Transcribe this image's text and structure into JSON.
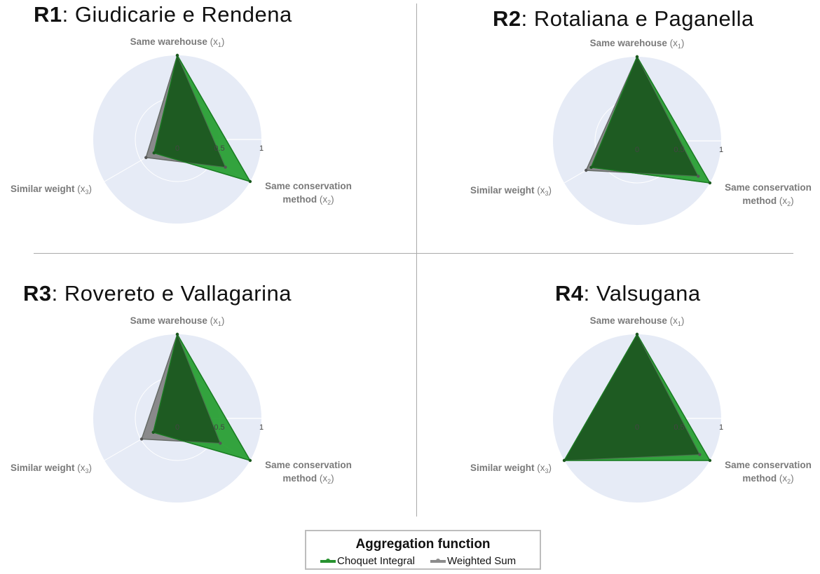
{
  "chart_data": [
    {
      "type": "radar",
      "title_bold": "R1",
      "title_rest": "Giudicarie e Rendena",
      "axes": [
        "Same warehouse (x1)",
        "Same conservation method (x2)",
        "Similar weight (x3)"
      ],
      "radial_ticks": [
        "0",
        "0.5",
        "1"
      ],
      "rlim": [
        0,
        1
      ],
      "series": [
        {
          "name": "Choquet Integral",
          "values": [
            1.0,
            1.0,
            0.32
          ]
        },
        {
          "name": "Weighted Sum",
          "values": [
            1.0,
            0.66,
            0.43
          ]
        }
      ]
    },
    {
      "type": "radar",
      "title_bold": "R2",
      "title_rest": "Rotaliana e Paganella",
      "axes": [
        "Same warehouse (x1)",
        "Same conservation method (x2)",
        "Similar weight (x3)"
      ],
      "radial_ticks": [
        "0",
        "0.5",
        "1"
      ],
      "rlim": [
        0,
        1
      ],
      "series": [
        {
          "name": "Choquet Integral",
          "values": [
            1.0,
            1.0,
            0.63
          ]
        },
        {
          "name": "Weighted Sum",
          "values": [
            1.0,
            0.84,
            0.7
          ]
        }
      ]
    },
    {
      "type": "radar",
      "title_bold": "R3",
      "title_rest": "Rovereto e Vallagarina",
      "axes": [
        "Same warehouse (x1)",
        "Same conservation method (x2)",
        "Similar weight (x3)"
      ],
      "radial_ticks": [
        "0",
        "0.5",
        "1"
      ],
      "rlim": [
        0,
        1
      ],
      "series": [
        {
          "name": "Choquet Integral",
          "values": [
            1.0,
            1.0,
            0.33
          ]
        },
        {
          "name": "Weighted Sum",
          "values": [
            1.0,
            0.59,
            0.49
          ]
        }
      ]
    },
    {
      "type": "radar",
      "title_bold": "R4",
      "title_rest": "Valsugana",
      "axes": [
        "Same warehouse (x1)",
        "Same conservation method (x2)",
        "Similar weight (x3)"
      ],
      "radial_ticks": [
        "0",
        "0.5",
        "1"
      ],
      "rlim": [
        0,
        1
      ],
      "series": [
        {
          "name": "Choquet Integral",
          "values": [
            1.0,
            1.0,
            1.0
          ]
        },
        {
          "name": "Weighted Sum",
          "values": [
            1.0,
            0.86,
            1.0
          ]
        }
      ]
    }
  ],
  "legend": {
    "title": "Aggregation function",
    "items": [
      {
        "label": "Choquet Integral",
        "color": "#27922f"
      },
      {
        "label": "Weighted Sum",
        "color": "#8c8c8c"
      }
    ]
  },
  "colors": {
    "choquet_fill": "#1f9b2a",
    "overlap_fill": "#1e5b22",
    "weighted_fill": "#7e7e80",
    "polar_background": "#e6ebf6",
    "grid": "#ffffff",
    "axis_label": "#7a7a7a"
  }
}
